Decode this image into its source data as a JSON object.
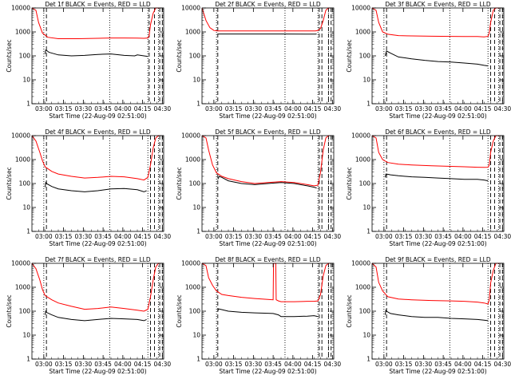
{
  "chart_data": [
    {
      "type": "line",
      "title": "Det 1f BLACK = Events, RED = LLD",
      "ylabel": "Counts/sec",
      "xlabel": "Start Time (22-Aug-09 02:51:00)",
      "yscale": "log",
      "ylim": [
        1,
        10000
      ],
      "xlim_minutes": [
        0,
        100
      ],
      "x_ticks": [
        "03:00",
        "03:15",
        "03:30",
        "03:45",
        "04:00",
        "04:15",
        "04:30"
      ],
      "y_ticks": [
        "1",
        "10",
        "100",
        "1000",
        "10000"
      ],
      "series": [
        {
          "color": "#ff0000",
          "x": [
            0,
            3,
            5,
            8,
            12,
            20,
            35,
            50,
            60,
            70,
            80,
            85,
            88,
            89,
            90,
            92,
            94,
            96,
            98
          ],
          "y": [
            10000,
            8000,
            2500,
            900,
            600,
            520,
            520,
            540,
            560,
            560,
            550,
            540,
            560,
            700,
            2000,
            6000,
            10000,
            10000,
            10000
          ]
        },
        {
          "color": "#000000",
          "x": [
            10,
            10.4,
            11,
            13,
            20,
            30,
            40,
            50,
            60,
            70,
            78,
            80,
            85,
            88
          ],
          "y": [
            120,
            175,
            170,
            140,
            110,
            100,
            105,
            115,
            120,
            105,
            100,
            110,
            100,
            95
          ]
        }
      ],
      "dotted_x": [
        9,
        59,
        88,
        96
      ],
      "dashed_x": [
        11,
        89,
        93,
        97,
        99
      ]
    },
    {
      "type": "line",
      "title": "Det 2f BLACK = Events, RED = LLD",
      "ylabel": "Counts/sec",
      "xlabel": "Start Time (22-Aug-09 02:51:00)",
      "yscale": "log",
      "ylim": [
        1,
        10000
      ],
      "xlim_minutes": [
        0,
        100
      ],
      "x_ticks": [
        "03:00",
        "03:15",
        "03:30",
        "03:45",
        "04:00",
        "04:15",
        "04:30"
      ],
      "y_ticks": [
        "1",
        "10",
        "100",
        "1000",
        "10000"
      ],
      "series": [
        {
          "color": "#ff0000",
          "x": [
            0,
            3,
            6,
            9,
            12,
            20,
            40,
            60,
            80,
            86,
            88,
            90,
            92,
            94,
            96,
            98
          ],
          "y": [
            10000,
            3000,
            1500,
            1150,
            1100,
            1100,
            1100,
            1100,
            1100,
            1100,
            1150,
            1400,
            3000,
            8000,
            10000,
            10000
          ]
        },
        {
          "color": "#000000",
          "x": [
            12,
            13,
            20,
            40,
            60,
            80,
            86,
            87
          ],
          "y": [
            800,
            820,
            820,
            820,
            820,
            810,
            810,
            820
          ]
        }
      ],
      "dotted_x": [
        11,
        63,
        88,
        96
      ],
      "dashed_x": [
        12,
        89,
        91,
        96,
        98
      ]
    },
    {
      "type": "line",
      "title": "Det 3f BLACK = Events, RED = LLD",
      "ylabel": "Counts/sec",
      "xlabel": "Start Time (22-Aug-09 02:51:00)",
      "yscale": "log",
      "ylim": [
        1,
        10000
      ],
      "xlim_minutes": [
        0,
        100
      ],
      "x_ticks": [
        "03:00",
        "03:15",
        "03:30",
        "03:45",
        "04:00",
        "04:15",
        "04:30"
      ],
      "y_ticks": [
        "1",
        "10",
        "100",
        "1000",
        "10000"
      ],
      "series": [
        {
          "color": "#ff0000",
          "x": [
            0,
            3,
            5,
            8,
            12,
            20,
            30,
            45,
            60,
            70,
            80,
            85,
            88,
            89,
            90,
            92,
            94,
            96,
            98
          ],
          "y": [
            10000,
            8000,
            2500,
            1000,
            800,
            700,
            680,
            660,
            650,
            640,
            640,
            620,
            650,
            900,
            2500,
            8000,
            10000,
            10000,
            10000
          ]
        },
        {
          "color": "#000000",
          "x": [
            10,
            10.5,
            11,
            14,
            20,
            30,
            40,
            50,
            60,
            70,
            80,
            85,
            88
          ],
          "y": [
            100,
            130,
            160,
            130,
            90,
            75,
            65,
            58,
            55,
            50,
            45,
            40,
            38
          ]
        }
      ],
      "dotted_x": [
        9,
        59,
        88,
        96
      ],
      "dashed_x": [
        11,
        90,
        93,
        97,
        99
      ]
    },
    {
      "type": "line",
      "title": "Det 4f BLACK = Events, RED = LLD",
      "ylabel": "Counts/sec",
      "xlabel": "Start Time (22-Aug-09 02:51:00)",
      "yscale": "log",
      "ylim": [
        1,
        10000
      ],
      "xlim_minutes": [
        0,
        100
      ],
      "x_ticks": [
        "03:00",
        "03:15",
        "03:30",
        "03:45",
        "04:00",
        "04:15",
        "04:30"
      ],
      "y_ticks": [
        "1",
        "10",
        "100",
        "1000",
        "10000"
      ],
      "series": [
        {
          "color": "#ff0000",
          "x": [
            0,
            3,
            6,
            8,
            10,
            15,
            20,
            30,
            40,
            50,
            60,
            70,
            80,
            85,
            88,
            90,
            92,
            94,
            96,
            98
          ],
          "y": [
            10000,
            6000,
            2000,
            900,
            500,
            320,
            250,
            200,
            170,
            180,
            200,
            190,
            160,
            140,
            180,
            600,
            3000,
            8000,
            10000,
            10000
          ]
        },
        {
          "color": "#000000",
          "x": [
            10,
            10.5,
            11,
            15,
            20,
            30,
            40,
            50,
            60,
            70,
            80,
            85,
            87
          ],
          "y": [
            70,
            110,
            100,
            75,
            60,
            50,
            45,
            50,
            60,
            62,
            55,
            45,
            50
          ]
        }
      ],
      "dotted_x": [
        9,
        59,
        88,
        96
      ],
      "dashed_x": [
        11,
        90,
        93,
        97,
        99
      ]
    },
    {
      "type": "line",
      "title": "Det 5f BLACK = Events, RED = LLD",
      "ylabel": "Counts/sec",
      "xlabel": "Start Time (22-Aug-09 02:51:00)",
      "yscale": "log",
      "ylim": [
        1,
        10000
      ],
      "xlim_minutes": [
        0,
        100
      ],
      "x_ticks": [
        "03:00",
        "03:15",
        "03:30",
        "03:45",
        "04:00",
        "04:15",
        "04:30"
      ],
      "y_ticks": [
        "1",
        "10",
        "100",
        "1000",
        "10000"
      ],
      "series": [
        {
          "color": "#ff0000",
          "x": [
            0,
            3,
            5,
            8,
            11,
            15,
            20,
            30,
            40,
            50,
            60,
            70,
            80,
            85,
            88,
            90,
            92,
            94,
            96,
            98
          ],
          "y": [
            10000,
            8000,
            2500,
            600,
            280,
            200,
            160,
            120,
            100,
            110,
            120,
            110,
            90,
            80,
            85,
            300,
            2500,
            8000,
            10000,
            10000
          ]
        },
        {
          "color": "#000000",
          "x": [
            12,
            13,
            15,
            20,
            30,
            40,
            50,
            60,
            70,
            80,
            85,
            87
          ],
          "y": [
            150,
            200,
            180,
            130,
            100,
            90,
            100,
            110,
            100,
            80,
            70,
            65
          ]
        }
      ],
      "dotted_x": [
        11,
        63,
        88,
        96
      ],
      "dashed_x": [
        12,
        89,
        91,
        96,
        98
      ]
    },
    {
      "type": "line",
      "title": "Det 6f BLACK = Events, RED = LLD",
      "ylabel": "Counts/sec",
      "xlabel": "Start Time (22-Aug-09 02:51:00)",
      "yscale": "log",
      "ylim": [
        1,
        10000
      ],
      "xlim_minutes": [
        0,
        100
      ],
      "x_ticks": [
        "03:00",
        "03:15",
        "03:30",
        "03:45",
        "04:00",
        "04:15",
        "04:30"
      ],
      "y_ticks": [
        "1",
        "10",
        "100",
        "1000",
        "10000"
      ],
      "series": [
        {
          "color": "#ff0000",
          "x": [
            0,
            3,
            5,
            8,
            12,
            20,
            30,
            45,
            60,
            70,
            80,
            85,
            88,
            89,
            90,
            92,
            94,
            96,
            98
          ],
          "y": [
            10000,
            8000,
            2000,
            1000,
            750,
            640,
            600,
            550,
            520,
            500,
            480,
            470,
            480,
            600,
            2000,
            6000,
            10000,
            10000,
            10000
          ]
        },
        {
          "color": "#000000",
          "x": [
            10,
            10.5,
            11,
            14,
            20,
            30,
            40,
            50,
            60,
            70,
            80,
            85,
            88
          ],
          "y": [
            180,
            250,
            250,
            230,
            210,
            190,
            180,
            170,
            160,
            150,
            150,
            140,
            130
          ]
        }
      ],
      "dotted_x": [
        9,
        59,
        88,
        96
      ],
      "dashed_x": [
        11,
        90,
        93,
        97,
        99
      ]
    },
    {
      "type": "line",
      "title": "Det 7f BLACK = Events, RED = LLD",
      "ylabel": "Counts/sec",
      "xlabel": "Start Time (22-Aug-09 02:51:00)",
      "yscale": "log",
      "ylim": [
        1,
        10000
      ],
      "xlim_minutes": [
        0,
        100
      ],
      "x_ticks": [
        "03:00",
        "03:15",
        "03:30",
        "03:45",
        "04:00",
        "04:15",
        "04:30"
      ],
      "y_ticks": [
        "1",
        "10",
        "100",
        "1000",
        "10000"
      ],
      "series": [
        {
          "color": "#ff0000",
          "x": [
            0,
            3,
            6,
            8,
            10,
            15,
            20,
            30,
            40,
            50,
            60,
            70,
            80,
            85,
            88,
            90,
            92,
            94,
            96,
            98
          ],
          "y": [
            10000,
            6000,
            2000,
            800,
            450,
            300,
            220,
            160,
            120,
            130,
            150,
            130,
            110,
            100,
            120,
            400,
            2000,
            7000,
            10000,
            10000
          ]
        },
        {
          "color": "#000000",
          "x": [
            10,
            10.5,
            11,
            15,
            20,
            30,
            40,
            50,
            60,
            70,
            80,
            85,
            87
          ],
          "y": [
            70,
            100,
            90,
            70,
            55,
            45,
            40,
            45,
            50,
            48,
            45,
            40,
            45
          ]
        }
      ],
      "dotted_x": [
        9,
        59,
        88,
        96
      ],
      "dashed_x": [
        11,
        90,
        93,
        97,
        99
      ]
    },
    {
      "type": "line",
      "title": "Det 8f BLACK = Events, RED = LLD",
      "ylabel": "Counts/sec",
      "xlabel": "Start Time (22-Aug-09 02:51:00)",
      "yscale": "log",
      "ylim": [
        1,
        10000
      ],
      "xlim_minutes": [
        0,
        100
      ],
      "x_ticks": [
        "03:00",
        "03:15",
        "03:30",
        "03:45",
        "04:00",
        "04:15",
        "04:30"
      ],
      "y_ticks": [
        "1",
        "10",
        "100",
        "1000",
        "10000"
      ],
      "series": [
        {
          "color": "#ff0000",
          "x": [
            0,
            3,
            5,
            8,
            11,
            15,
            20,
            30,
            40,
            50,
            54,
            54.3,
            56,
            56.3,
            58,
            60,
            70,
            80,
            85,
            88,
            90,
            92,
            94,
            96,
            98
          ],
          "y": [
            10000,
            8000,
            2500,
            1200,
            700,
            500,
            450,
            380,
            340,
            310,
            300,
            10000,
            10000,
            300,
            270,
            250,
            250,
            260,
            260,
            270,
            500,
            3000,
            8000,
            10000,
            10000
          ]
        },
        {
          "color": "#000000",
          "x": [
            12,
            12.5,
            14,
            20,
            30,
            40,
            50,
            54,
            58,
            60,
            70,
            80,
            85,
            88
          ],
          "y": [
            100,
            125,
            120,
            100,
            90,
            85,
            82,
            80,
            70,
            60,
            60,
            62,
            65,
            60
          ]
        }
      ],
      "dotted_x": [
        11,
        63,
        88,
        96
      ],
      "dashed_x": [
        12,
        89,
        91,
        96,
        98
      ]
    },
    {
      "type": "line",
      "title": "Det 9f BLACK = Events, RED = LLD",
      "ylabel": "Counts/sec",
      "xlabel": "Start Time (22-Aug-09 02:51:00)",
      "yscale": "log",
      "ylim": [
        1,
        10000
      ],
      "xlim_minutes": [
        0,
        100
      ],
      "x_ticks": [
        "03:00",
        "03:15",
        "03:30",
        "03:45",
        "04:00",
        "04:15",
        "04:30"
      ],
      "y_ticks": [
        "1",
        "10",
        "100",
        "1000",
        "10000"
      ],
      "series": [
        {
          "color": "#ff0000",
          "x": [
            0,
            3,
            5,
            8,
            12,
            20,
            30,
            45,
            60,
            70,
            80,
            85,
            88,
            89,
            90,
            92,
            94,
            96,
            98
          ],
          "y": [
            10000,
            7000,
            1600,
            700,
            400,
            320,
            300,
            280,
            270,
            260,
            240,
            220,
            200,
            300,
            1500,
            5000,
            10000,
            10000,
            10000
          ]
        },
        {
          "color": "#000000",
          "x": [
            10,
            10.5,
            11,
            14,
            20,
            30,
            40,
            50,
            60,
            70,
            80,
            85,
            88
          ],
          "y": [
            70,
            110,
            100,
            80,
            70,
            60,
            55,
            55,
            50,
            48,
            45,
            42,
            40
          ]
        }
      ],
      "dotted_x": [
        9,
        59,
        88,
        96
      ],
      "dashed_x": [
        11,
        90,
        93,
        97,
        99
      ]
    }
  ]
}
